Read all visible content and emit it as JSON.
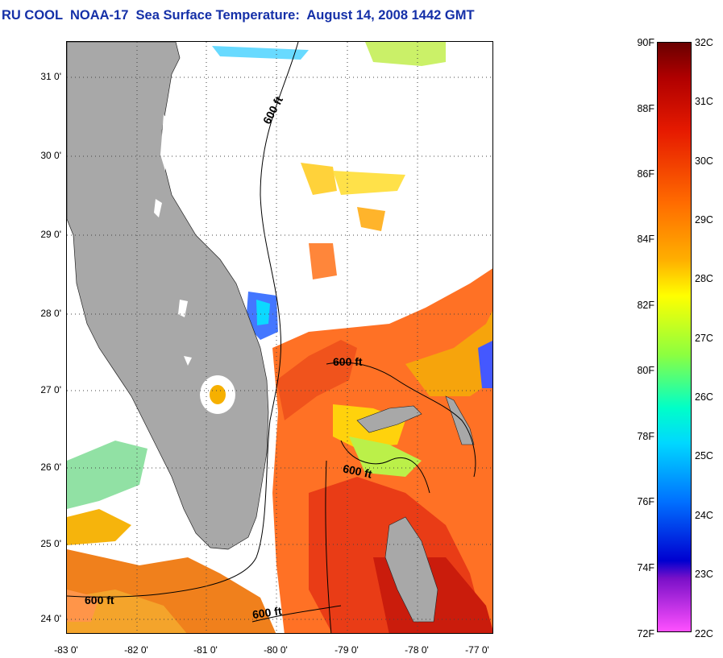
{
  "title": "RU COOL  NOAA-17  Sea Surface Temperature:  August 14, 2008 1442 GMT",
  "map": {
    "lat_labels": [
      "31 0'",
      "30 0'",
      "29 0'",
      "28 0'",
      "27 0'",
      "26 0'",
      "25 0'",
      "24 0'"
    ],
    "lon_labels": [
      "-83 0'",
      "-82 0'",
      "-81 0'",
      "-80 0'",
      "-79 0'",
      "-78 0'",
      "-77 0'"
    ],
    "lat_range": [
      23.8,
      31.45
    ],
    "lon_range": [
      -83.0,
      -77.0
    ],
    "contour_labels": [
      "600 ft",
      "600 ft",
      "600 ft",
      "600 ft",
      "600 ft"
    ],
    "land_color": "#a8a8a8",
    "grid": "dotted"
  },
  "colorbar": {
    "f_labels": [
      "90F",
      "88F",
      "86F",
      "84F",
      "82F",
      "80F",
      "78F",
      "76F",
      "74F",
      "72F"
    ],
    "c_labels": [
      "32C",
      "31C",
      "30C",
      "29C",
      "28C",
      "27C",
      "26C",
      "25C",
      "24C",
      "23C",
      "22C"
    ],
    "c_range": [
      22,
      32
    ],
    "stops": [
      {
        "pos": 0.0,
        "color": "#6a0000"
      },
      {
        "pos": 0.06,
        "color": "#b00000"
      },
      {
        "pos": 0.15,
        "color": "#e61a00"
      },
      {
        "pos": 0.27,
        "color": "#ff6a00"
      },
      {
        "pos": 0.37,
        "color": "#ffb000"
      },
      {
        "pos": 0.43,
        "color": "#ffff00"
      },
      {
        "pos": 0.53,
        "color": "#8cff40"
      },
      {
        "pos": 0.62,
        "color": "#00ffc8"
      },
      {
        "pos": 0.68,
        "color": "#00d8ff"
      },
      {
        "pos": 0.78,
        "color": "#0070ff"
      },
      {
        "pos": 0.88,
        "color": "#0000d0"
      },
      {
        "pos": 0.91,
        "color": "#7a10c8"
      },
      {
        "pos": 1.0,
        "color": "#ff50ff"
      }
    ]
  }
}
